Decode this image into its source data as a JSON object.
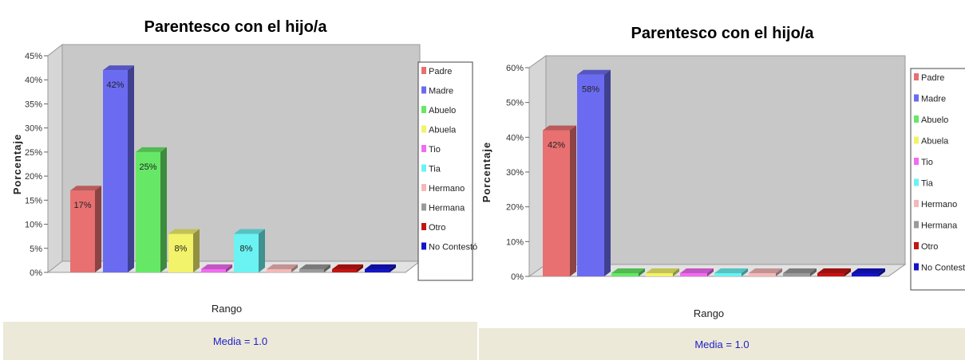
{
  "colors": [
    "#e87070",
    "#6b6bf2",
    "#66e866",
    "#f2f26b",
    "#f26bf2",
    "#6bf2f2",
    "#f4b8b8",
    "#9a9a9a",
    "#c41414",
    "#1414c8"
  ],
  "chart_data": [
    {
      "type": "bar",
      "title": "Parentesco con el hijo/a",
      "xlabel": "Rango",
      "ylabel": "Porcentaje",
      "ylim": [
        0,
        45
      ],
      "yticks": [
        "0%",
        "5%",
        "10%",
        "15%",
        "20%",
        "25%",
        "30%",
        "35%",
        "40%",
        "45%"
      ],
      "ytick_values": [
        0,
        5,
        10,
        15,
        20,
        25,
        30,
        35,
        40,
        45
      ],
      "categories": [
        "Padre",
        "Madre",
        "Abuelo",
        "Abuela",
        "Tio",
        "Tia",
        "Hermano",
        "Hermana",
        "Otro",
        "No Contestó"
      ],
      "values": [
        17,
        42,
        25,
        8,
        0,
        8,
        0,
        0,
        0,
        0
      ],
      "data_labels": [
        "17%",
        "42%",
        "25%",
        "8%",
        "",
        "8%",
        "",
        "",
        "",
        ""
      ],
      "legend": [
        "Padre",
        "Madre",
        "Abuelo",
        "Abuela",
        "Tio",
        "Tia",
        "Hermano",
        "Hermana",
        "Otro",
        "No Contestó"
      ],
      "legend_position": "right",
      "grid": false,
      "footer": "Media = 1.0"
    },
    {
      "type": "bar",
      "title": "Parentesco con el hijo/a",
      "xlabel": "Rango",
      "ylabel": "Porcentaje",
      "ylim": [
        0,
        60
      ],
      "yticks": [
        "0%",
        "10%",
        "20%",
        "30%",
        "40%",
        "50%",
        "60%"
      ],
      "ytick_values": [
        0,
        10,
        20,
        30,
        40,
        50,
        60
      ],
      "categories": [
        "Padre",
        "Madre",
        "Abuelo",
        "Abuela",
        "Tio",
        "Tia",
        "Hermano",
        "Hermana",
        "Otro",
        "No Contestó"
      ],
      "values": [
        42,
        58,
        0,
        0,
        0,
        0,
        0,
        0,
        0,
        0
      ],
      "data_labels": [
        "42%",
        "58%",
        "",
        "",
        "",
        "",
        "",
        "",
        "",
        ""
      ],
      "legend": [
        "Padre",
        "Madre",
        "Abuelo",
        "Abuela",
        "Tio",
        "Tia",
        "Hermano",
        "Hermana",
        "Otro",
        "No Contestó"
      ],
      "legend_position": "right",
      "grid": false,
      "footer": "Media = 1.0"
    }
  ]
}
